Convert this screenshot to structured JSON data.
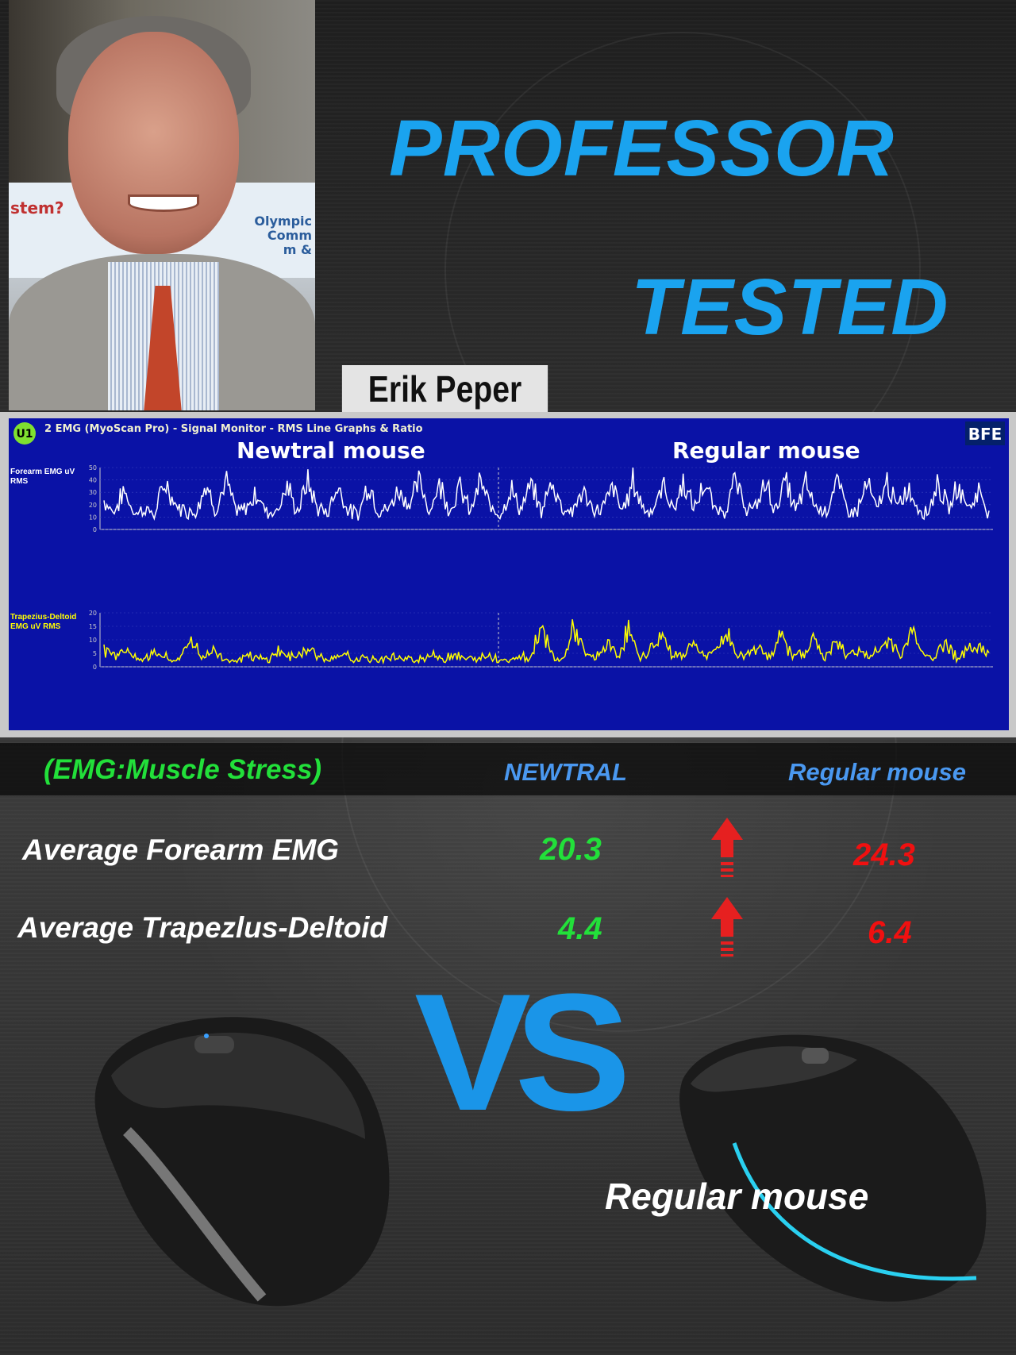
{
  "header": {
    "title_line1": "PROFESSOR",
    "title_line2": "TESTED",
    "name_label": "Erik Peper",
    "photo_sign_text": [
      "stem?",
      "Olympic",
      "Comm",
      "m &"
    ]
  },
  "colors": {
    "title": "#1aa3ef",
    "chart_bg": "#0a12a6",
    "forearm_line": "#ffffff",
    "trapezius_line": "#ffff00",
    "neutral_value": "#22e03a",
    "regular_value": "#f01010",
    "column_header": "#4a98f0",
    "vs": "#1a95e8"
  },
  "chart_data": {
    "type": "line",
    "title": "2 EMG (MyoScan Pro) - Signal Monitor - RMS Line Graphs & Ratio",
    "logo_text": "BFE",
    "annotations": [
      "Newtral mouse",
      "Regular mouse"
    ],
    "grid": true,
    "panels": [
      {
        "ylabel": "Forearm EMG uV RMS",
        "ylim": [
          0,
          50
        ],
        "yticks": [
          0,
          10,
          20,
          30,
          40,
          50
        ],
        "color": "#ffffff",
        "values": [
          30,
          18,
          40,
          16,
          22,
          15,
          50,
          25,
          20,
          18,
          48,
          20,
          50,
          18,
          22,
          38,
          18,
          20,
          45,
          17,
          50,
          22,
          18,
          46,
          20,
          15,
          50,
          18,
          22,
          42,
          25,
          50,
          19,
          48,
          20,
          44,
          18,
          50,
          22,
          17,
          42,
          20,
          46,
          18,
          50,
          24,
          18,
          40,
          20,
          22,
          44,
          18,
          50,
          23,
          19,
          46,
          21,
          50,
          20,
          48,
          22,
          18,
          50,
          24,
          20,
          49,
          21,
          50,
          19,
          47,
          23,
          20,
          50,
          22,
          18,
          48,
          20,
          50,
          21,
          44,
          22,
          18,
          50,
          20,
          46,
          22,
          40,
          18
        ]
      },
      {
        "ylabel": "Trapezius-Deltoid EMG uV RMS",
        "ylim": [
          0,
          20
        ],
        "yticks": [
          0,
          5,
          10,
          15,
          20
        ],
        "color": "#ffff00",
        "values": [
          8,
          6,
          9,
          3,
          5,
          7,
          3,
          4,
          14,
          4,
          8,
          4,
          3,
          5,
          4,
          3,
          8,
          4,
          7,
          8,
          4,
          3,
          6,
          3,
          4,
          3,
          5,
          4,
          3,
          4,
          6,
          3,
          7,
          4,
          3,
          6,
          4,
          3,
          5,
          4,
          20,
          5,
          3,
          19,
          6,
          4,
          11,
          5,
          18,
          4,
          8,
          15,
          6,
          5,
          12,
          4,
          8,
          16,
          5,
          6,
          10,
          4,
          15,
          5,
          7,
          13,
          4,
          12,
          5,
          9,
          4,
          8,
          13,
          5,
          18,
          6,
          4,
          12,
          5,
          7,
          11,
          5
        ]
      }
    ]
  },
  "stats": {
    "header": {
      "label": "(EMG:Muscle Stress)",
      "col1": "NEWTRAL",
      "col2": "Regular mouse"
    },
    "rows": [
      {
        "label": "Average Forearm EMG",
        "neutral": "20.3",
        "regular": "24.3",
        "indicator": "arrow-up-icon"
      },
      {
        "label": "Average Trapezlus-Deltoid",
        "neutral": "4.4",
        "regular": "6.4",
        "indicator": "arrow-up-icon"
      }
    ]
  },
  "comparison": {
    "vs": "VS",
    "right_label": "Regular mouse"
  }
}
